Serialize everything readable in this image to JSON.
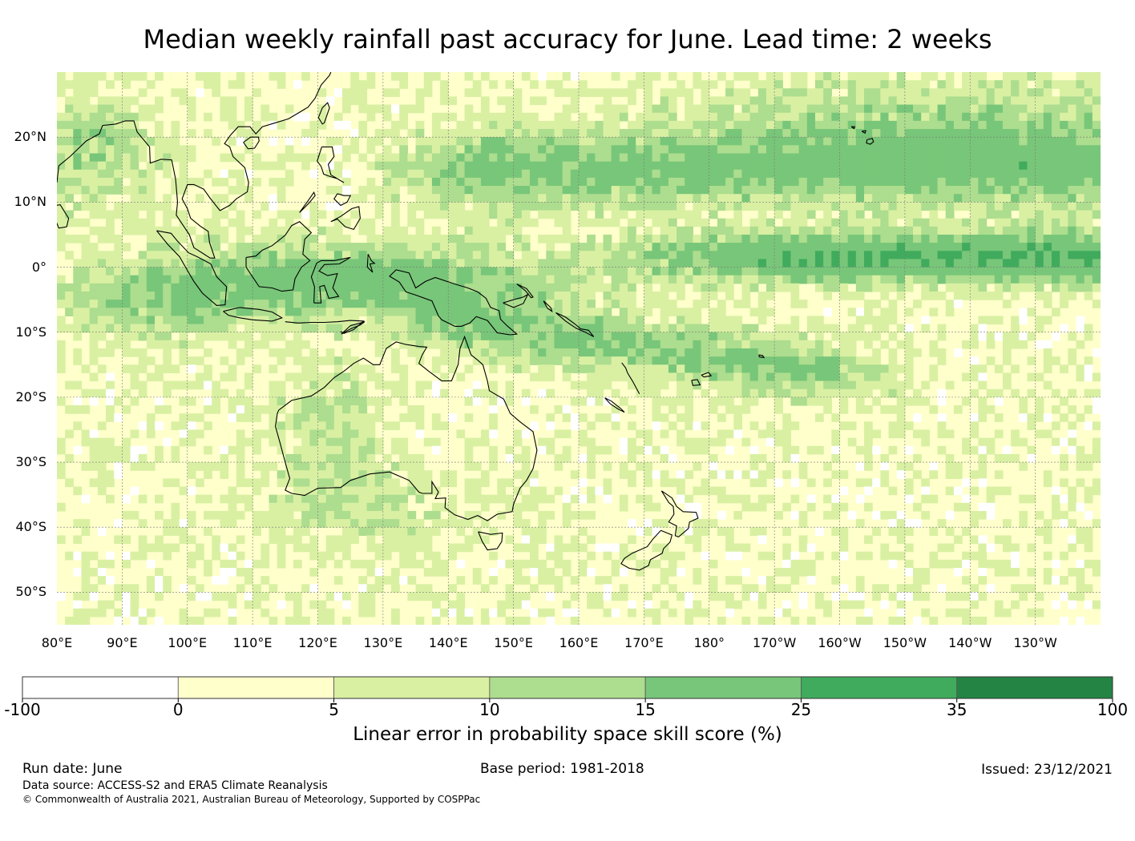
{
  "title": "Median weekly rainfall past accuracy for June. Lead time: 2 weeks",
  "map": {
    "lon_range": [
      80,
      240
    ],
    "lat_range": [
      -55,
      30
    ],
    "lon_labels": [
      "80°E",
      "90°E",
      "100°E",
      "110°E",
      "120°E",
      "130°E",
      "140°E",
      "150°E",
      "160°E",
      "170°E",
      "180°",
      "170°W",
      "160°W",
      "150°W",
      "140°W",
      "130°W"
    ],
    "lat_labels": [
      "20°N",
      "10°N",
      "0°",
      "10°S",
      "20°S",
      "30°S",
      "40°S",
      "50°S"
    ],
    "grid": true
  },
  "colorbar": {
    "label": "Linear error in probability space skill score (%)",
    "ticks": [
      "-100",
      "0",
      "5",
      "10",
      "15",
      "25",
      "35",
      "100"
    ],
    "colors": [
      "#ffffff",
      "#ffffcc",
      "#d9f0a3",
      "#addd8e",
      "#78c679",
      "#41ab5d",
      "#238443"
    ]
  },
  "footer": {
    "run_date": "Run date: June",
    "base_period": "Base period: 1981-2018",
    "issued": "Issued: 23/12/2021",
    "source": "Data source: ACCESS-S2 and ERA5 Climate Reanalysis",
    "copyright": "© Commonwealth of Australia 2021, Australian Bureau of Meteorology, Supported by COSPPac"
  }
}
